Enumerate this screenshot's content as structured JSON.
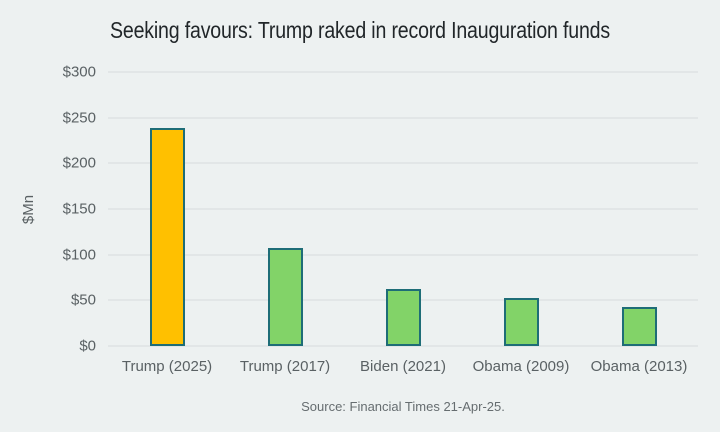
{
  "figure": {
    "background_color": "#edf1f1",
    "source": "Source: Financial Times 21-Apr-25."
  },
  "chart_data": {
    "type": "bar",
    "title": "Seeking favours: Trump raked in record Inauguration funds",
    "categories": [
      "Trump (2025)",
      "Trump (2017)",
      "Biden (2021)",
      "Obama (2009)",
      "Obama (2013)"
    ],
    "values": [
      239,
      107,
      62,
      53,
      43
    ],
    "xlabel": "",
    "ylabel": "$Mn",
    "ylim": [
      0,
      300
    ],
    "yticks": [
      0,
      50,
      100,
      150,
      200,
      250,
      300
    ],
    "ytick_labels": [
      "$0",
      "$50",
      "$100",
      "$150",
      "$200",
      "$250",
      "$300"
    ],
    "grid": true,
    "legend": false,
    "bar_colors": [
      "#ffc000",
      "#82d368",
      "#82d368",
      "#82d368",
      "#82d368"
    ],
    "bar_border_color": "#1e6d77",
    "gridline_color": "#d8dcdd",
    "source": "Source: Financial Times 21-Apr-25."
  }
}
